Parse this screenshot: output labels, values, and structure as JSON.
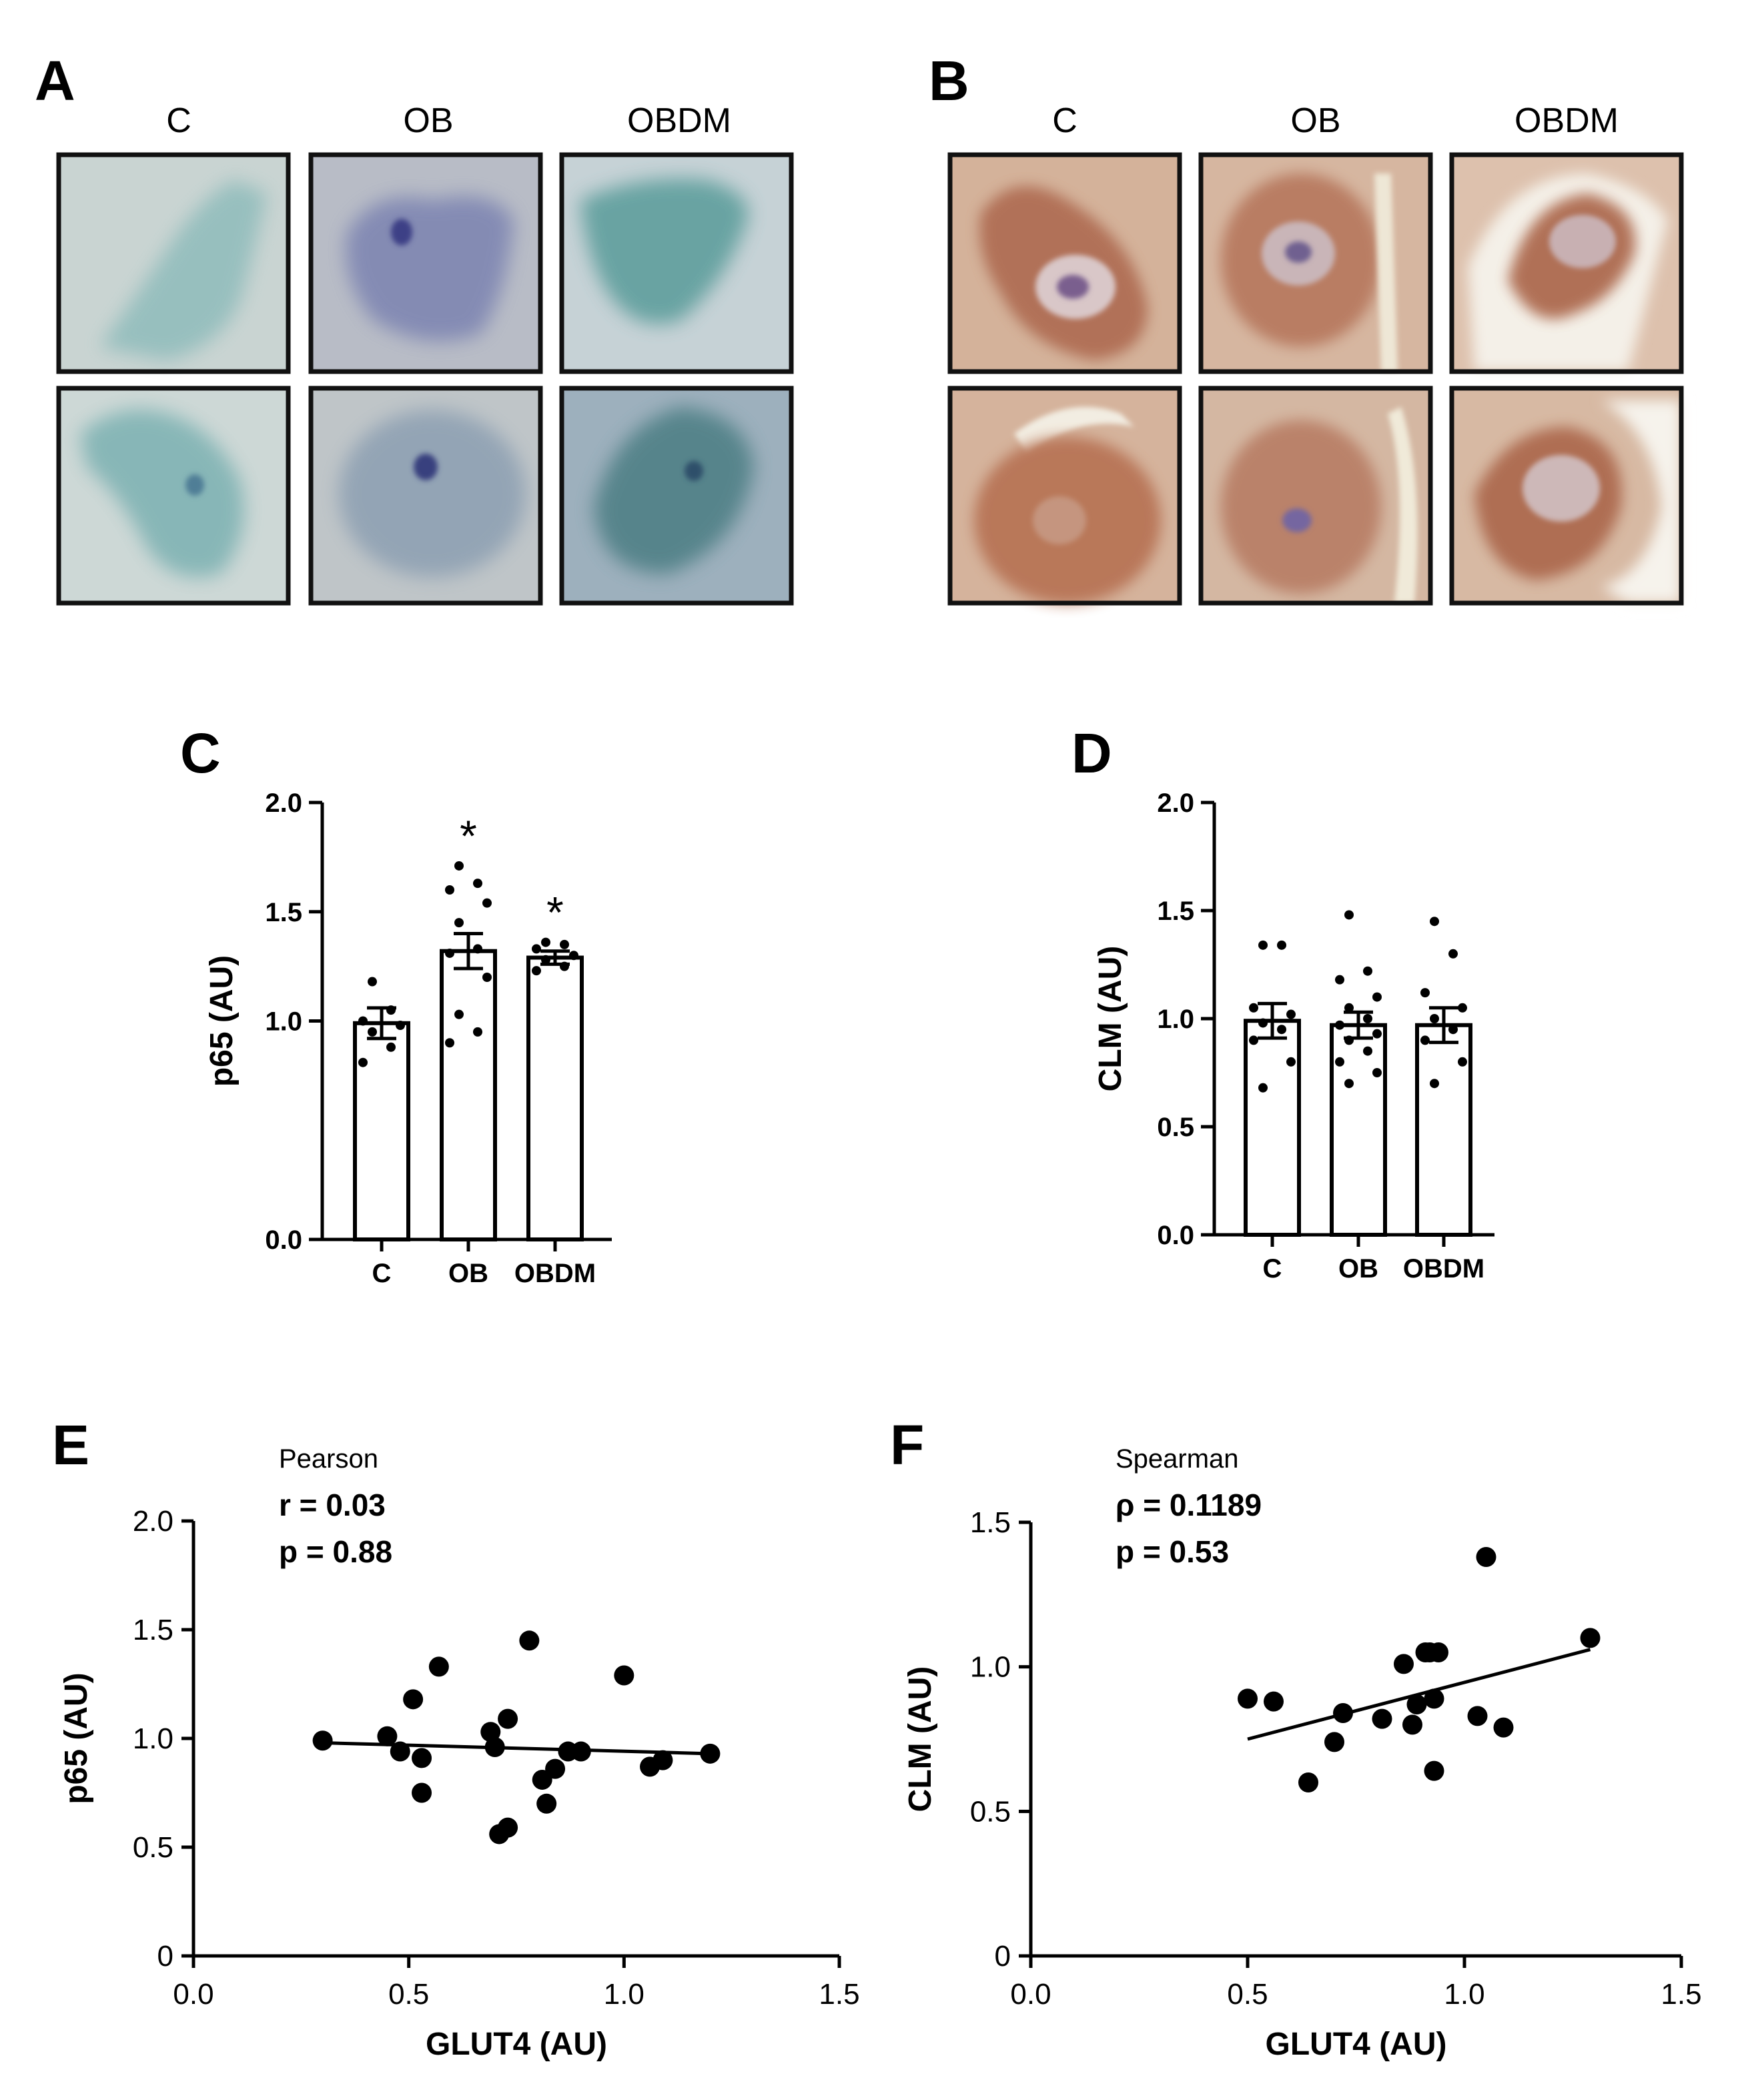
{
  "panel_letters": {
    "a": "A",
    "b": "B",
    "c": "C",
    "d": "D",
    "e": "E",
    "f": "F"
  },
  "micrographs": {
    "columns": [
      "C",
      "OB",
      "OBDM"
    ],
    "panel_a_stain_colors": {
      "background": "#c4d0cd",
      "cell": "#6fa7ac",
      "dark": "#4a5f93"
    },
    "panel_b_stain_colors": {
      "background": "#d9b8a0",
      "cell": "#b7775d",
      "nucleus": "#8a7ca6",
      "cleft": "#f3efe6"
    }
  },
  "chart_data": [
    {
      "panel": "C",
      "type": "bar",
      "categories": [
        "C",
        "OB",
        "OBDM"
      ],
      "values": [
        0.99,
        1.32,
        1.29
      ],
      "sem": [
        0.07,
        0.08,
        0.03
      ],
      "points": [
        [
          1.18,
          1.05,
          1.0,
          0.98,
          0.95,
          0.88,
          0.81
        ],
        [
          1.71,
          1.63,
          1.6,
          1.54,
          1.45,
          1.33,
          1.31,
          1.2,
          1.03,
          0.95,
          0.9
        ],
        [
          1.36,
          1.35,
          1.33,
          1.3,
          1.28,
          1.25,
          1.23
        ]
      ],
      "significance": [
        "",
        "*",
        "*"
      ],
      "ylabel": "p65 (AU)",
      "yticks": [
        "0.0",
        "1.0",
        "1.5",
        "2.0"
      ],
      "ytick_values": [
        0.0,
        1.0,
        1.5,
        2.0
      ],
      "ylim": [
        0,
        2.0
      ],
      "color": "#000000"
    },
    {
      "panel": "D",
      "type": "bar",
      "categories": [
        "C",
        "OB",
        "OBDM"
      ],
      "values": [
        0.99,
        0.97,
        0.97
      ],
      "sem": [
        0.08,
        0.06,
        0.08
      ],
      "points": [
        [
          1.34,
          1.34,
          1.05,
          1.02,
          0.98,
          0.95,
          0.9,
          0.8,
          0.68
        ],
        [
          1.48,
          1.22,
          1.18,
          1.1,
          1.05,
          1.0,
          0.97,
          0.93,
          0.9,
          0.85,
          0.8,
          0.75,
          0.7
        ],
        [
          1.45,
          1.3,
          1.12,
          1.05,
          1.0,
          0.95,
          0.9,
          0.8,
          0.7
        ]
      ],
      "significance": [
        "",
        "",
        ""
      ],
      "ylabel": "CLM (AU)",
      "yticks": [
        "0.0",
        "0.5",
        "1.0",
        "1.5",
        "2.0"
      ],
      "ytick_values": [
        0.0,
        0.5,
        1.0,
        1.5,
        2.0
      ],
      "ylim": [
        0,
        2.0
      ],
      "color": "#000000"
    },
    {
      "panel": "E",
      "type": "scatter",
      "x": [
        0.3,
        0.45,
        0.48,
        0.51,
        0.53,
        0.53,
        0.57,
        0.69,
        0.7,
        0.71,
        0.73,
        0.73,
        0.78,
        0.81,
        0.82,
        0.84,
        0.87,
        0.9,
        1.0,
        1.06,
        1.09,
        1.2
      ],
      "y": [
        0.99,
        1.01,
        0.94,
        1.18,
        0.91,
        0.75,
        1.33,
        1.03,
        0.96,
        0.56,
        0.59,
        1.09,
        1.45,
        0.81,
        0.7,
        0.86,
        0.94,
        0.94,
        1.29,
        0.87,
        0.9,
        0.93
      ],
      "fit": {
        "x": [
          0.3,
          1.2
        ],
        "y": [
          0.98,
          0.93
        ]
      },
      "annotation": [
        "Pearson",
        "r  = 0.03",
        "p = 0.88"
      ],
      "xlabel": "GLUT4 (AU)",
      "ylabel": "p65 (AU)",
      "xticks": [
        "0.0",
        "0.5",
        "1.0",
        "1.5"
      ],
      "xtick_values": [
        0.0,
        0.5,
        1.0,
        1.5
      ],
      "yticks": [
        "0",
        "0.5",
        "1.0",
        "1.5",
        "2.0"
      ],
      "ytick_values": [
        0.0,
        0.5,
        1.0,
        1.5,
        2.0
      ],
      "xlim": [
        0,
        1.5
      ],
      "ylim": [
        0,
        2.0
      ],
      "color": "#000000"
    },
    {
      "panel": "F",
      "type": "scatter",
      "x": [
        0.5,
        0.56,
        0.64,
        0.7,
        0.72,
        0.81,
        0.86,
        0.88,
        0.89,
        0.91,
        0.92,
        0.93,
        0.93,
        0.94,
        1.03,
        1.05,
        1.09,
        1.29
      ],
      "y": [
        0.89,
        0.88,
        0.6,
        0.74,
        0.84,
        0.82,
        1.01,
        0.8,
        0.87,
        1.05,
        1.05,
        0.64,
        0.89,
        1.05,
        0.83,
        1.38,
        0.79,
        1.1
      ],
      "fit": {
        "x": [
          0.5,
          1.29
        ],
        "y": [
          0.75,
          1.06
        ]
      },
      "annotation": [
        "Spearman",
        "ρ  = 0.1189",
        "p = 0.53"
      ],
      "xlabel": "GLUT4 (AU)",
      "ylabel": "CLM (AU)",
      "xticks": [
        "0.0",
        "0.5",
        "1.0",
        "1.5"
      ],
      "xtick_values": [
        0.0,
        0.5,
        1.0,
        1.5
      ],
      "yticks": [
        "0",
        "0.5",
        "1.0",
        "1.5"
      ],
      "ytick_values": [
        0.0,
        0.5,
        1.0,
        1.5
      ],
      "xlim": [
        0,
        1.5
      ],
      "ylim": [
        0,
        1.5
      ],
      "color": "#000000"
    }
  ]
}
